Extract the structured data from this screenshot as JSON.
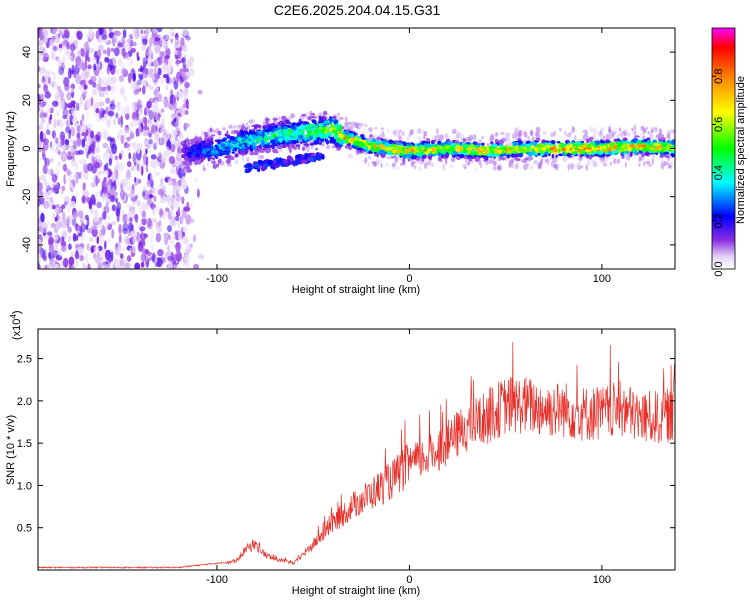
{
  "figure": {
    "title": "C2E6.2025.204.04.15.G31"
  },
  "chart_data": [
    {
      "type": "heatmap",
      "xlabel": "Height of straight line (km)",
      "ylabel": "Frequency (Hz)",
      "xlim": [
        -193,
        138
      ],
      "ylim": [
        -50,
        50
      ],
      "xticks": [
        -100,
        0,
        100
      ],
      "yticks": [
        -40,
        -20,
        0,
        20,
        40
      ],
      "grid": false,
      "colorbar": {
        "label": "Normalized spectral amplitude",
        "range": [
          0,
          1
        ],
        "ticks": [
          0.0,
          0.2,
          0.4,
          0.6,
          0.8
        ],
        "colormap": [
          "#ffffff",
          "#e6d5f7",
          "#8a2be2",
          "#0000ff",
          "#00ffff",
          "#00ff00",
          "#ffff00",
          "#ff7f00",
          "#ff0000"
        ]
      },
      "ridge": {
        "x": [
          -118,
          -100,
          -80,
          -65,
          -50,
          -40,
          -35,
          -20,
          0,
          20,
          40,
          60,
          80,
          100,
          120,
          138
        ],
        "freq_hz": [
          -2,
          0,
          4,
          6,
          7,
          8,
          5,
          1,
          -1,
          0,
          -1,
          0,
          0,
          0,
          1,
          0
        ],
        "amplitude": [
          0.2,
          0.35,
          0.45,
          0.5,
          0.55,
          0.65,
          0.8,
          0.75,
          0.85,
          0.75,
          0.8,
          0.8,
          0.85,
          0.85,
          0.8,
          0.75
        ]
      },
      "noise_region_x": [
        -193,
        -108
      ]
    },
    {
      "type": "line",
      "xlabel": "Height of straight line (km)",
      "ylabel": "SNR (10 * v/v)",
      "y_scale_label": "(x10",
      "y_scale_exponent": "4",
      "xlim": [
        -193,
        138
      ],
      "ylim": [
        0,
        28500
      ],
      "xticks": [
        -100,
        0,
        100
      ],
      "yticks": [
        5000,
        10000,
        15000,
        20000,
        25000
      ],
      "ytick_labels": [
        "0.5",
        "1.0",
        "1.5",
        "2.0",
        "2.5"
      ],
      "grid": false,
      "color": "#e8302a",
      "series": [
        {
          "x": [
            -193,
            -150,
            -120,
            -100,
            -90,
            -85,
            -80,
            -75,
            -70,
            -60,
            -50,
            -40,
            -30,
            -20,
            -10,
            0,
            10,
            20,
            30,
            40,
            50,
            60,
            70,
            80,
            90,
            100,
            110,
            120,
            130,
            138
          ],
          "values": [
            300,
            300,
            300,
            800,
            1000,
            2500,
            3000,
            1800,
            1300,
            800,
            3000,
            5500,
            7500,
            9000,
            10500,
            12500,
            13500,
            15000,
            17000,
            18000,
            19500,
            19500,
            19000,
            19000,
            18500,
            18500,
            19000,
            18000,
            18000,
            18500
          ]
        }
      ]
    }
  ]
}
